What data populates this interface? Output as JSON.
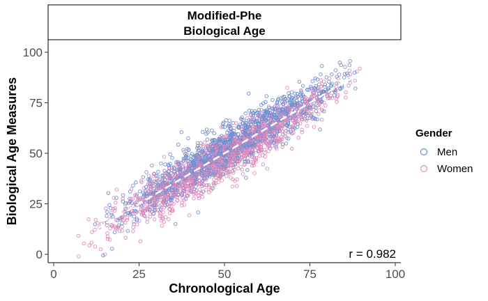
{
  "chart_data": {
    "type": "scatter",
    "facet_title": "Modified-Phe\nBiological Age",
    "xlabel": "Chronological Age",
    "ylabel": "Biological Age Measures",
    "xlim": [
      0,
      100
    ],
    "ylim": [
      0,
      105
    ],
    "x_ticks": [
      0,
      25,
      50,
      75,
      100
    ],
    "y_ticks": [
      0,
      25,
      50,
      75,
      100
    ],
    "grid": false,
    "legend": {
      "title": "Gender",
      "position": "right",
      "entries": [
        {
          "label": "Men",
          "color": "#6f8fd0"
        },
        {
          "label": "Women",
          "color": "#e08bbb"
        }
      ]
    },
    "series": [
      {
        "name": "Men",
        "color": "#6f8fd0",
        "marker": "open-circle",
        "x_range": [
          8,
          96
        ],
        "trend": {
          "slope": 1.0,
          "intercept": 1.5
        },
        "spread": 5.5,
        "approx_count": 1400
      },
      {
        "name": "Women",
        "color": "#e08bbb",
        "marker": "open-circle",
        "x_range": [
          3,
          95
        ],
        "trend": {
          "slope": 1.0,
          "intercept": -2.0
        },
        "spread": 5.5,
        "approx_count": 1400
      }
    ],
    "reference_line": {
      "style": "dashed",
      "color": "#ffffff",
      "x": [
        13,
        92
      ],
      "y": [
        13,
        92
      ]
    },
    "annotation": {
      "text": "r = 0.982",
      "x": 97,
      "y": 0
    }
  }
}
